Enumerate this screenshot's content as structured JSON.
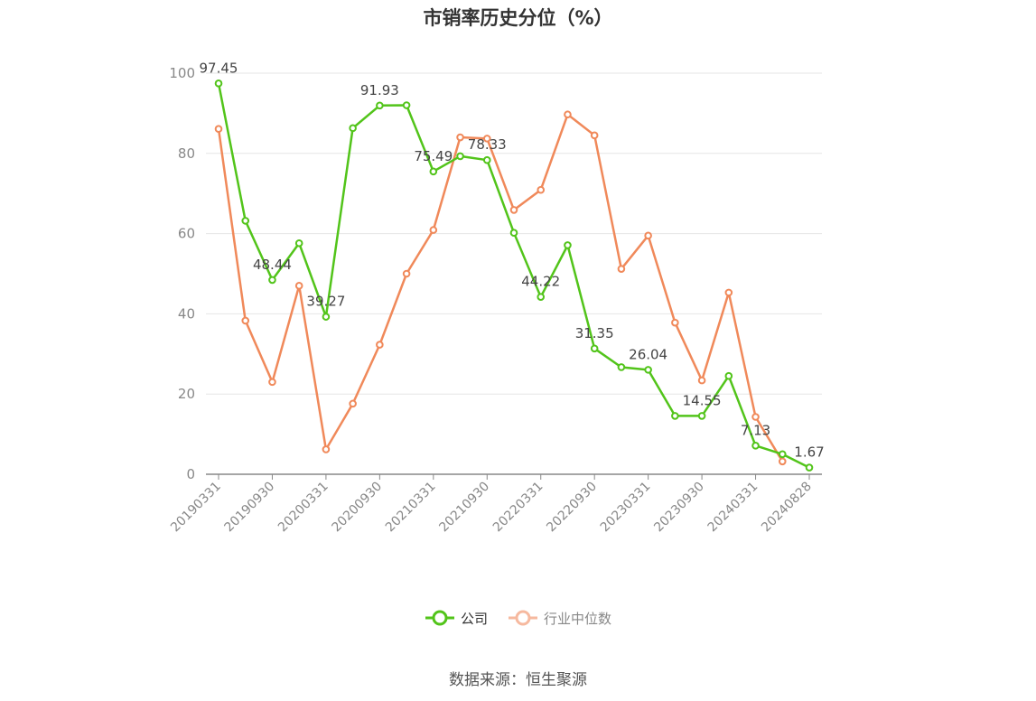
{
  "chart_data": {
    "type": "line",
    "title": "市销率历史分位（%）",
    "source": "数据来源：恒生聚源",
    "x": [
      "20190331",
      "20190630",
      "20190930",
      "20191231",
      "20200331",
      "20200630",
      "20200930",
      "20201231",
      "20210331",
      "20210630",
      "20210930",
      "20211231",
      "20220331",
      "20220630",
      "20220930",
      "20221231",
      "20230331",
      "20230630",
      "20230930",
      "20231231",
      "20240331",
      "20240630",
      "20240828"
    ],
    "x_tick_labels": [
      "20190331",
      "20190930",
      "20200331",
      "20200930",
      "20210331",
      "20210930",
      "20220331",
      "20220930",
      "20230331",
      "20230930",
      "20240331",
      "20240828"
    ],
    "y_ticks": [
      "0",
      "20",
      "40",
      "60",
      "80",
      "100"
    ],
    "ylim": [
      0,
      100
    ],
    "grid": true,
    "legend_position": "bottom",
    "series": [
      {
        "name": "公司",
        "color": "#52c41a",
        "values": [
          97.45,
          63.2,
          48.44,
          57.6,
          39.27,
          86.3,
          91.93,
          92.0,
          75.49,
          79.3,
          78.33,
          60.2,
          44.22,
          57.1,
          31.35,
          26.7,
          26.04,
          14.55,
          14.55,
          24.5,
          7.13,
          5.0,
          1.67
        ],
        "data_labels": [
          {
            "index": 0,
            "text": "97.45"
          },
          {
            "index": 2,
            "text": "48.44"
          },
          {
            "index": 4,
            "text": "39.27"
          },
          {
            "index": 6,
            "text": "91.93"
          },
          {
            "index": 8,
            "text": "75.49"
          },
          {
            "index": 10,
            "text": "78.33"
          },
          {
            "index": 12,
            "text": "44.22"
          },
          {
            "index": 14,
            "text": "31.35"
          },
          {
            "index": 16,
            "text": "26.04"
          },
          {
            "index": 18,
            "text": "14.55"
          },
          {
            "index": 20,
            "text": "7.13"
          },
          {
            "index": 22,
            "text": "1.67"
          }
        ]
      },
      {
        "name": "行业中位数",
        "color": "#f0895a",
        "values": [
          86.1,
          38.3,
          23.0,
          47.0,
          6.2,
          17.6,
          32.3,
          50.0,
          60.9,
          84.0,
          83.7,
          65.9,
          70.9,
          89.7,
          84.5,
          51.2,
          59.5,
          37.8,
          23.4,
          45.3,
          14.3,
          3.2,
          null
        ]
      }
    ]
  }
}
